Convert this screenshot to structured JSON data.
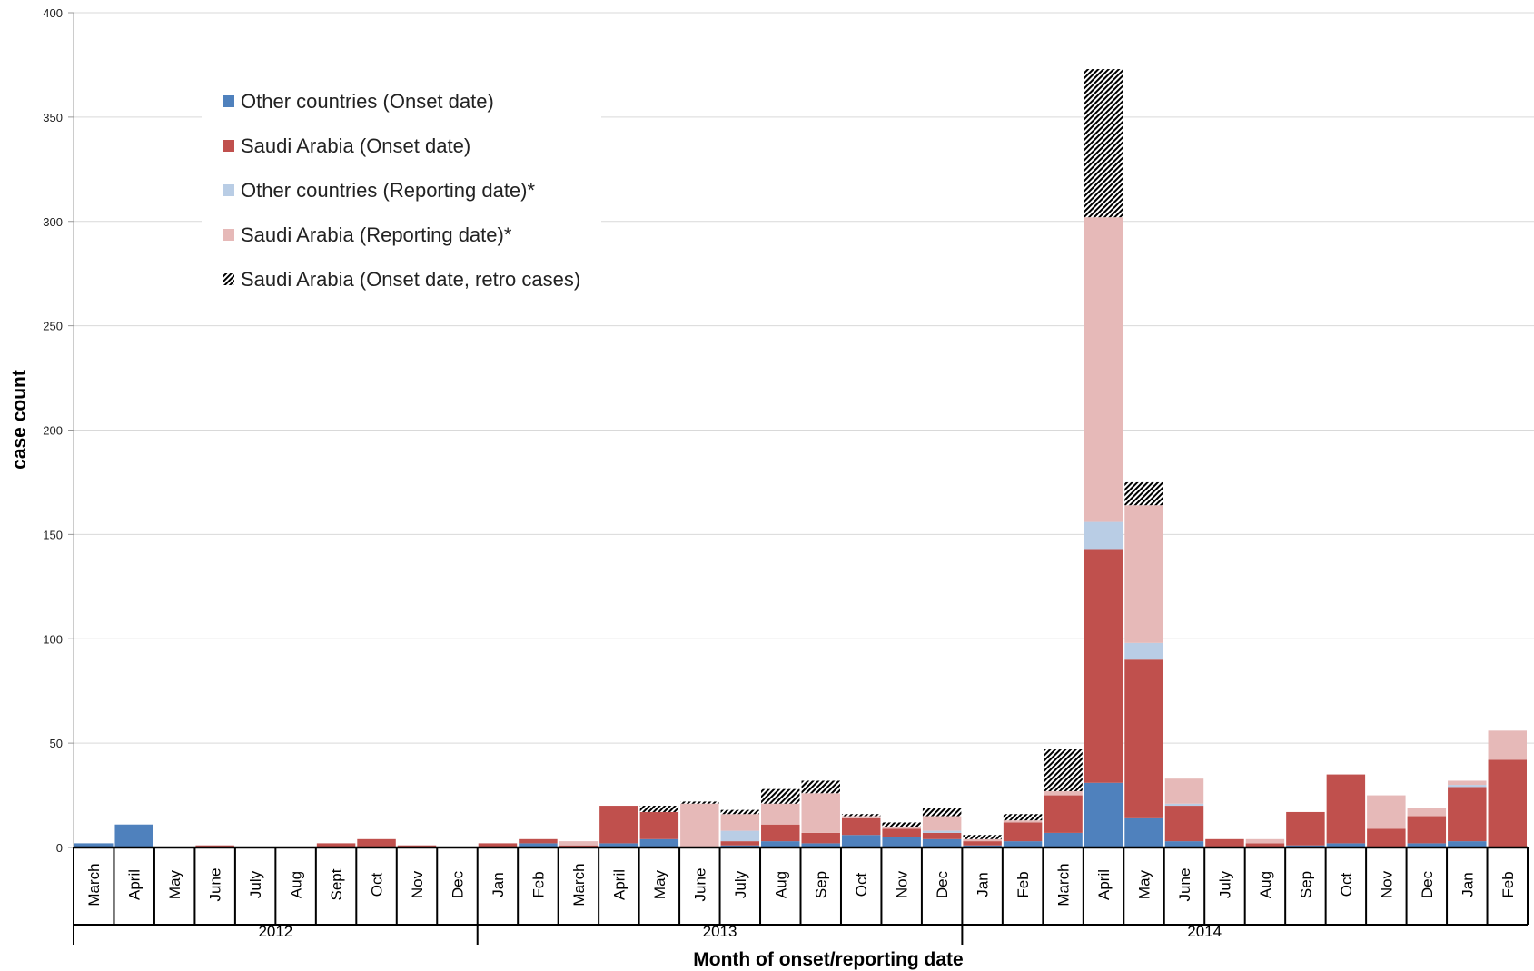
{
  "chart_data": {
    "type": "bar",
    "stacked": true,
    "title": "",
    "xlabel": "Month of onset/reporting date",
    "ylabel": "case count",
    "ylim": [
      0,
      400
    ],
    "yticks": [
      0,
      50,
      100,
      150,
      200,
      250,
      300,
      350,
      400
    ],
    "grid": true,
    "legend_position": "top-left",
    "categories": [
      "March",
      "April",
      "May",
      "June",
      "July",
      "Aug",
      "Sept",
      "Oct",
      "Nov",
      "Dec",
      "Jan",
      "Feb",
      "March",
      "April",
      "May",
      "June",
      "July",
      "Aug",
      "Sep",
      "Oct",
      "Nov",
      "Dec",
      "Jan",
      "Feb",
      "March",
      "April",
      "May",
      "June",
      "July",
      "Aug",
      "Sep",
      "Oct",
      "Nov",
      "Dec",
      "Jan",
      "Feb"
    ],
    "years": [
      {
        "label": "2012",
        "start": 0,
        "end": 9
      },
      {
        "label": "2013",
        "start": 10,
        "end": 21
      },
      {
        "label": "2014",
        "start": 22,
        "end": 33
      }
    ],
    "series": [
      {
        "name": "Other countries (Onset date)",
        "color": "#4f81bd",
        "pattern": "solid",
        "values": [
          2,
          11,
          0,
          0,
          0,
          0,
          0,
          0,
          0,
          0,
          0,
          2,
          0,
          2,
          4,
          0,
          1,
          3,
          2,
          6,
          5,
          4,
          1,
          3,
          7,
          31,
          14,
          3,
          0,
          0,
          1,
          2,
          0,
          2,
          3,
          0
        ]
      },
      {
        "name": "Saudi Arabia (Onset date)",
        "color": "#c0504d",
        "pattern": "solid",
        "values": [
          0,
          0,
          0,
          1,
          0,
          0,
          2,
          4,
          1,
          0,
          2,
          2,
          1,
          18,
          13,
          0,
          2,
          8,
          5,
          8,
          4,
          3,
          2,
          9,
          18,
          112,
          76,
          17,
          4,
          2,
          16,
          33,
          9,
          13,
          26,
          42
        ]
      },
      {
        "name": "Other countries (Reporting date)*",
        "color": "#b9cde5",
        "pattern": "solid",
        "values": [
          0,
          0,
          0,
          0,
          0,
          0,
          0,
          0,
          0,
          0,
          0,
          0,
          0,
          0,
          0,
          0,
          5,
          0,
          0,
          0,
          0,
          1,
          0,
          0,
          0,
          13,
          8,
          1,
          0,
          0,
          0,
          0,
          0,
          0,
          1,
          0
        ]
      },
      {
        "name": "Saudi Arabia (Reporting date)*",
        "color": "#e6b9b8",
        "pattern": "solid",
        "values": [
          0,
          0,
          0,
          0,
          0,
          0,
          0,
          0,
          0,
          0,
          0,
          0,
          2,
          0,
          0,
          21,
          8,
          10,
          19,
          1,
          1,
          7,
          1,
          1,
          2,
          146,
          66,
          12,
          0,
          2,
          0,
          0,
          16,
          4,
          2,
          14
        ]
      },
      {
        "name": "Saudi Arabia (Onset date, retro cases)",
        "color": "#000000",
        "pattern": "hatch",
        "values": [
          0,
          0,
          0,
          0,
          0,
          0,
          0,
          0,
          0,
          0,
          0,
          0,
          0,
          0,
          3,
          1,
          2,
          7,
          6,
          1,
          2,
          4,
          2,
          3,
          20,
          71,
          11,
          0,
          0,
          0,
          0,
          0,
          0,
          0,
          0,
          0
        ]
      }
    ]
  }
}
